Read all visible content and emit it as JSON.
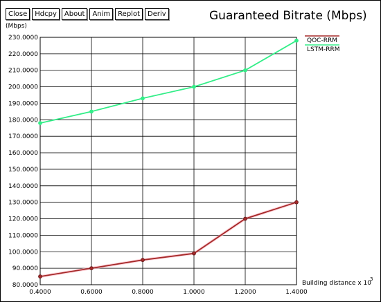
{
  "toolbar": {
    "buttons": [
      "Close",
      "Hdcpy",
      "About",
      "Anim",
      "Replot",
      "Deriv"
    ]
  },
  "unit_label": "(Mbps)",
  "chart_data": {
    "type": "line",
    "title": "Guaranteed Bitrate (Mbps)",
    "xlabel": "Building distance x 10",
    "xlabel_exponent": "3",
    "ylabel": "",
    "x": [
      0.4,
      0.6,
      0.8,
      1.0,
      1.2,
      1.4
    ],
    "x_ticks": [
      "0.4000",
      "0.6000",
      "0.8000",
      "1.0000",
      "1.2000",
      "1.4000"
    ],
    "y_ticks": [
      "80.0000",
      "90.0000",
      "100.0000",
      "110.0000",
      "120.0000",
      "130.0000",
      "140.0000",
      "150.0000",
      "160.0000",
      "170.0000",
      "180.0000",
      "190.0000",
      "200.0000",
      "210.0000",
      "220.0000",
      "230.0000"
    ],
    "xlim": [
      0.4,
      1.4
    ],
    "ylim": [
      80,
      230
    ],
    "grid": true,
    "legend_placement": "right",
    "series": [
      {
        "name": "QOC-RRM",
        "color": "#a52a2a",
        "values": [
          85,
          90,
          95,
          99,
          120,
          130
        ]
      },
      {
        "name": "LSTM-RRM",
        "color": "#33ee88",
        "values": [
          178,
          185,
          193,
          200,
          210,
          228
        ]
      }
    ]
  }
}
